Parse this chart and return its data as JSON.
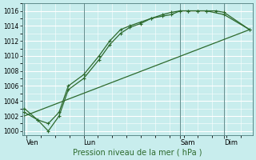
{
  "title": "",
  "xlabel": "Pression niveau de la mer ( hPa )",
  "background_color": "#c8eded",
  "grid_color": "#b0dede",
  "line_color": "#2d6a2d",
  "ylim": [
    999.5,
    1017
  ],
  "yticks": [
    1000,
    1002,
    1004,
    1006,
    1008,
    1010,
    1012,
    1014,
    1016
  ],
  "day_labels": [
    "Ven",
    "Lun",
    "Sam",
    "Dim"
  ],
  "day_positions": [
    0.14,
    2.0,
    5.14,
    6.57
  ],
  "vline_positions": [
    0.07,
    2.0,
    5.14,
    6.57
  ],
  "xmin": 0.0,
  "xmax": 7.5,
  "series1_x": [
    0.07,
    0.5,
    0.85,
    1.2,
    1.5,
    2.0,
    2.5,
    2.85,
    3.2,
    3.5,
    3.85,
    4.2,
    4.57,
    4.85,
    5.14,
    5.4,
    5.7,
    6.0,
    6.57,
    7.4
  ],
  "series1_y": [
    1003,
    1001.5,
    1001.0,
    1002.5,
    1006.0,
    1007.5,
    1010.0,
    1012.0,
    1013.5,
    1014.0,
    1014.5,
    1015.0,
    1015.3,
    1015.5,
    1016.0,
    1016.0,
    1016.0,
    1016.0,
    1015.5,
    1013.5
  ],
  "series2_x": [
    0.07,
    0.5,
    0.85,
    1.2,
    1.5,
    2.0,
    2.5,
    2.85,
    3.2,
    3.5,
    3.85,
    4.2,
    4.57,
    4.85,
    5.14,
    5.4,
    5.7,
    6.0,
    6.3,
    6.57,
    7.4
  ],
  "series2_y": [
    1002.5,
    1001.5,
    1000.0,
    1002.0,
    1005.5,
    1007.0,
    1009.5,
    1011.5,
    1013.0,
    1013.8,
    1014.3,
    1015.0,
    1015.5,
    1015.8,
    1016.0,
    1016.0,
    1016.0,
    1016.0,
    1016.0,
    1015.8,
    1013.5
  ],
  "series3_x": [
    0.07,
    7.4
  ],
  "series3_y": [
    1002.0,
    1013.5
  ],
  "figwidth": 3.2,
  "figheight": 2.0,
  "dpi": 100
}
